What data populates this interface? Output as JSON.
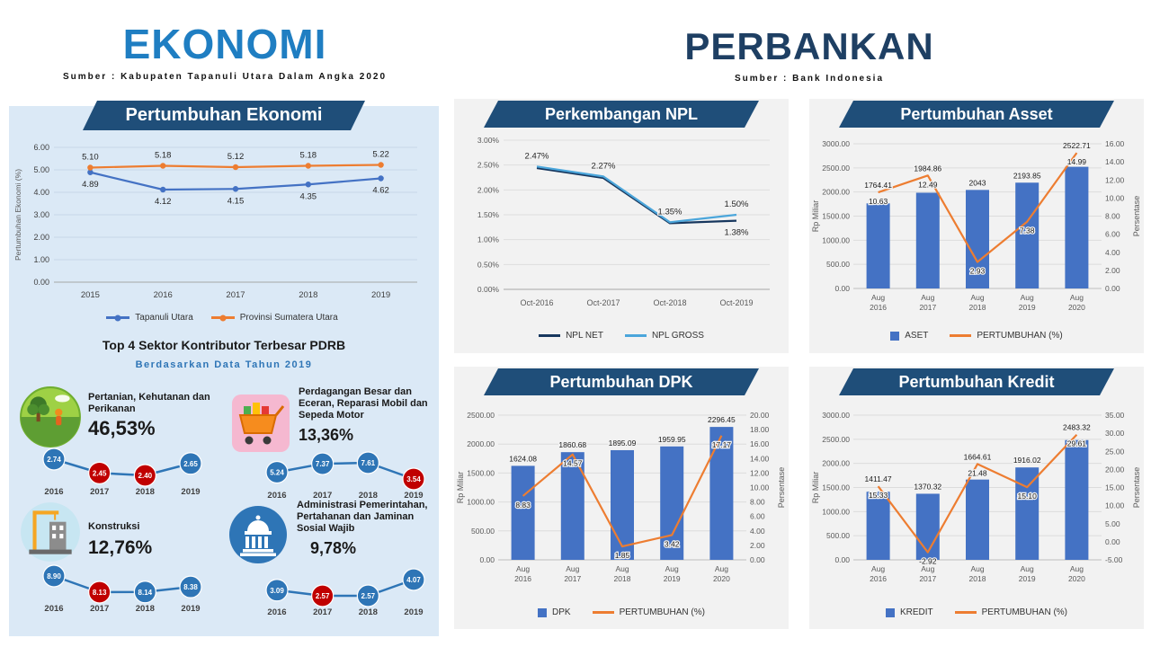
{
  "ekonomi": {
    "title": "EKONOMI",
    "source": "Sumber : Kabupaten Tapanuli Utara Dalam Angka 2020",
    "top4_title": "Top 4 Sektor Kontributor Terbesar PDRB",
    "top4_subtitle": "Berdasarkan Data Tahun 2019",
    "sectors": [
      {
        "name": "Pertanian, Kehutanan dan Perikanan",
        "share": "46,53%",
        "icon": "agriculture-icon"
      },
      {
        "name": "Perdagangan Besar dan Eceran, Reparasi Mobil dan Sepeda Motor",
        "share": "13,36%",
        "icon": "trade-icon"
      },
      {
        "name": "Konstruksi",
        "share": "12,76%",
        "icon": "construction-icon"
      },
      {
        "name": "Administrasi Pemerintahan, Pertahanan dan Jaminan Sosial Wajib",
        "share": "9,78%",
        "icon": "government-icon"
      }
    ]
  },
  "perbankan": {
    "title": "PERBANKAN",
    "source": "Sumber : Bank Indonesia"
  },
  "colors": {
    "bar_blue": "#4472C4",
    "line_orange": "#ED7D31",
    "banner_navy": "#1F4E79",
    "badge_blue": "#2E75B6",
    "badge_red": "#C00000",
    "ekonomi_panel": "#DBE9F6",
    "ekonomi_title": "#1F7EC2",
    "perbankan_title": "#1E3F63"
  },
  "chart_data": [
    {
      "id": "ekonomi",
      "type": "line",
      "title": "Pertumbuhan Ekonomi",
      "ylabel": "Pertumbuhan Ekonomi (%)",
      "categories": [
        "2015",
        "2016",
        "2017",
        "2018",
        "2019"
      ],
      "ylim": [
        0,
        6
      ],
      "ystep": 1,
      "ytick_format": "2dp",
      "grid": true,
      "legend": "bottom",
      "series": [
        {
          "name": "Tapanuli Utara",
          "color": "#4472C4",
          "marker": "line-dot",
          "label_pos": "below",
          "values": [
            4.89,
            4.12,
            4.15,
            4.35,
            4.62
          ]
        },
        {
          "name": "Provinsi Sumatera Utara",
          "color": "#ED7D31",
          "marker": "line-dot",
          "label_pos": "above",
          "values": [
            5.1,
            5.18,
            5.12,
            5.18,
            5.22
          ]
        }
      ]
    },
    {
      "id": "sector-pertanian",
      "type": "badge-line",
      "line_color": "#2E75B6",
      "categories": [
        "2016",
        "2017",
        "2018",
        "2019"
      ],
      "points": [
        {
          "value": 2.74,
          "label": "2.74",
          "color": "#2E75B6"
        },
        {
          "value": 2.45,
          "label": "2.45",
          "color": "#C00000"
        },
        {
          "value": 2.4,
          "label": "2.40",
          "color": "#C00000"
        },
        {
          "value": 2.65,
          "label": "2.65",
          "color": "#2E75B6"
        }
      ]
    },
    {
      "id": "sector-perdagangan",
      "type": "badge-line",
      "line_color": "#2E75B6",
      "categories": [
        "2016",
        "2017",
        "2018",
        "2019"
      ],
      "points": [
        {
          "value": 5.24,
          "label": "5.24",
          "color": "#2E75B6"
        },
        {
          "value": 7.37,
          "label": "7.37",
          "color": "#2E75B6"
        },
        {
          "value": 7.61,
          "label": "7.61",
          "color": "#2E75B6"
        },
        {
          "value": 3.54,
          "label": "3.54",
          "color": "#C00000"
        }
      ]
    },
    {
      "id": "sector-konstruksi",
      "type": "badge-line",
      "line_color": "#2E75B6",
      "categories": [
        "2016",
        "2017",
        "2018",
        "2019"
      ],
      "points": [
        {
          "value": 8.9,
          "label": "8.90",
          "color": "#2E75B6"
        },
        {
          "value": 8.13,
          "label": "8.13",
          "color": "#C00000"
        },
        {
          "value": 8.14,
          "label": "8.14",
          "color": "#2E75B6"
        },
        {
          "value": 8.38,
          "label": "8.38",
          "color": "#2E75B6"
        }
      ]
    },
    {
      "id": "sector-administrasi",
      "type": "badge-line",
      "line_color": "#2E75B6",
      "categories": [
        "2016",
        "2017",
        "2018",
        "2019"
      ],
      "points": [
        {
          "value": 3.09,
          "label": "3.09",
          "color": "#2E75B6"
        },
        {
          "value": 2.57,
          "label": "2.57",
          "color": "#C00000"
        },
        {
          "value": 2.57,
          "label": "2.57",
          "color": "#2E75B6"
        },
        {
          "value": 4.07,
          "label": "4.07",
          "color": "#2E75B6"
        }
      ]
    },
    {
      "id": "npl",
      "type": "line",
      "title": "Perkembangan NPL",
      "categories": [
        "Oct-2016",
        "Oct-2017",
        "Oct-2018",
        "Oct-2019"
      ],
      "ylim": [
        0,
        3
      ],
      "ystep": 0.5,
      "ytick_format": "pct2",
      "grid": true,
      "legend": "bottom",
      "series": [
        {
          "name": "NPL NET",
          "color": "#17375E",
          "marker": "line",
          "label_pos": "below",
          "values": [
            2.44,
            2.24,
            1.33,
            1.38
          ],
          "labels": [
            "",
            "",
            "",
            "1.38%"
          ]
        },
        {
          "name": "NPL GROSS",
          "color": "#4BA6DB",
          "marker": "line",
          "label_pos": "above",
          "values": [
            2.47,
            2.27,
            1.35,
            1.5
          ],
          "labels": [
            "2.47%",
            "2.27%",
            "1.35%",
            "1.50%"
          ]
        }
      ]
    },
    {
      "id": "asset",
      "type": "combo",
      "title": "Pertumbuhan Asset",
      "categories": [
        [
          "Aug",
          "2016"
        ],
        [
          "Aug",
          "2017"
        ],
        [
          "Aug",
          "2018"
        ],
        [
          "Aug",
          "2019"
        ],
        [
          "Aug",
          "2020"
        ]
      ],
      "bars": {
        "name": "ASET",
        "marker": "square",
        "color": "#4472C4",
        "values": [
          1764.41,
          1984.86,
          2043,
          2193.85,
          2522.71
        ],
        "labels": [
          "1764.41",
          "1984.86",
          "2043",
          "2193.85",
          "2522.71"
        ]
      },
      "line": {
        "name": "PERTUMBUHAN (%)",
        "marker": "line",
        "color": "#ED7D31",
        "values": [
          10.63,
          12.49,
          2.93,
          7.38,
          14.99
        ],
        "labels": [
          "10.63",
          "12.49",
          "2.93",
          "7.38",
          "14.99"
        ]
      },
      "y1": {
        "label": "Rp Miliar",
        "min": 0,
        "max": 3000,
        "step": 500
      },
      "y2": {
        "label": "Persentase",
        "min": 0,
        "max": 16,
        "step": 2
      },
      "grid": true,
      "legend": "bottom"
    },
    {
      "id": "dpk",
      "type": "combo",
      "title": "Pertumbuhan DPK",
      "categories": [
        [
          "Aug",
          "2016"
        ],
        [
          "Aug",
          "2017"
        ],
        [
          "Aug",
          "2018"
        ],
        [
          "Aug",
          "2019"
        ],
        [
          "Aug",
          "2020"
        ]
      ],
      "bars": {
        "name": "DPK",
        "marker": "square",
        "color": "#4472C4",
        "values": [
          1624.08,
          1860.68,
          1895.09,
          1959.95,
          2296.45
        ],
        "labels": [
          "1624.08",
          "1860.68",
          "1895.09",
          "1959.95",
          "2296.45"
        ]
      },
      "line": {
        "name": "PERTUMBUHAN (%)",
        "marker": "line",
        "color": "#ED7D31",
        "values": [
          8.83,
          14.57,
          1.85,
          3.42,
          17.17
        ],
        "labels": [
          "8.83",
          "14.57",
          "1.85",
          "3.42",
          "17.17"
        ]
      },
      "y1": {
        "label": "Rp Miliar",
        "min": 0,
        "max": 2500,
        "step": 500
      },
      "y2": {
        "label": "Persentase",
        "min": 0,
        "max": 20,
        "step": 2
      },
      "grid": true,
      "legend": "bottom"
    },
    {
      "id": "kredit",
      "type": "combo",
      "title": "Pertumbuhan Kredit",
      "categories": [
        [
          "Aug",
          "2016"
        ],
        [
          "Aug",
          "2017"
        ],
        [
          "Aug",
          "2018"
        ],
        [
          "Aug",
          "2019"
        ],
        [
          "Aug",
          "2020"
        ]
      ],
      "bars": {
        "name": "KREDIT",
        "marker": "square",
        "color": "#4472C4",
        "values": [
          1411.47,
          1370.32,
          1664.61,
          1916.02,
          2483.32
        ],
        "labels": [
          "1411.47",
          "1370.32",
          "1664.61",
          "1916.02",
          "2483.32"
        ]
      },
      "line": {
        "name": "PERTUMBUHAN (%)",
        "marker": "line",
        "color": "#ED7D31",
        "values": [
          15.33,
          -2.92,
          21.48,
          15.1,
          29.61
        ],
        "labels": [
          "15.33",
          "-2.92",
          "21.48",
          "15.10",
          "29.61"
        ]
      },
      "y1": {
        "label": "Rp Miliar",
        "min": 0,
        "max": 3000,
        "step": 500
      },
      "y2": {
        "label": "Persentase",
        "min": -5,
        "max": 35,
        "step": 5
      },
      "grid": true,
      "legend": "bottom"
    }
  ]
}
